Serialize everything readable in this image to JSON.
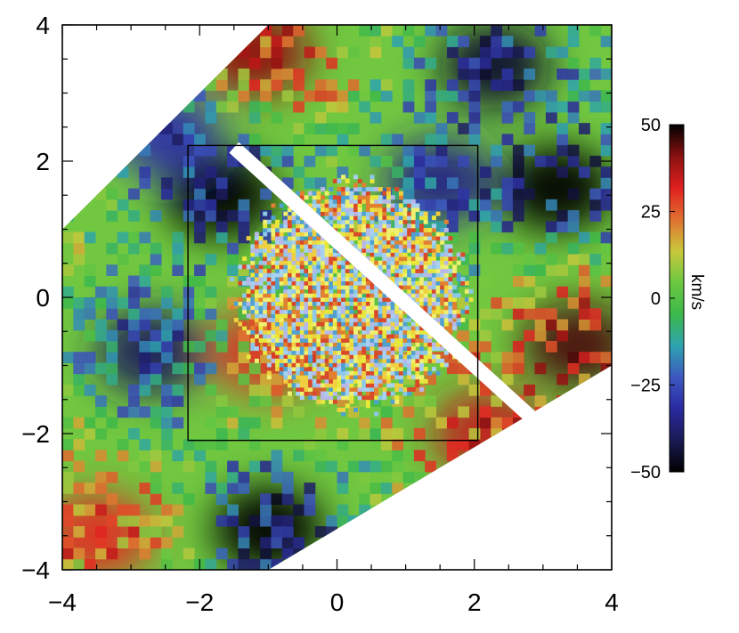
{
  "chart_data": {
    "type": "heatmap",
    "title": "",
    "xlabel": "",
    "ylabel": "",
    "xlim": [
      -4,
      4
    ],
    "ylim": [
      -4,
      4
    ],
    "x_ticks": [
      "−4",
      "−2",
      "0",
      "2",
      "4"
    ],
    "y_ticks": [
      "4",
      "2",
      "0",
      "−2",
      "−4"
    ],
    "x_tick_values": [
      -4,
      -2,
      0,
      2,
      4
    ],
    "y_tick_values": [
      4,
      2,
      0,
      -2,
      -4
    ],
    "grid": false,
    "colorbar": {
      "unit": "km/s",
      "range": [
        -50,
        50
      ],
      "ticks": [
        "50",
        "25",
        "0",
        "−25",
        "−50"
      ],
      "tick_values": [
        50,
        25,
        0,
        -25,
        -50
      ],
      "colormap": [
        "#000000",
        "#1a1a55",
        "#2a2aa0",
        "#3d58c0",
        "#2ea3b0",
        "#3cb84a",
        "#6cc840",
        "#c9c83c",
        "#e07030",
        "#e02020",
        "#8a1010",
        "#000000"
      ]
    },
    "velocity_field": {
      "region_corners": [
        [
          -1.0,
          4.0
        ],
        [
          4.0,
          4.0
        ],
        [
          4.0,
          -1.0
        ],
        [
          -1.0,
          -4.0
        ],
        [
          -4.0,
          -4.0
        ],
        [
          -4.0,
          1.0
        ]
      ],
      "slit_line": [
        [
          -1.5,
          2.2
        ],
        [
          3.2,
          -2.1
        ]
      ],
      "blobs": [
        {
          "x": -1.2,
          "y": 3.6,
          "v": 40
        },
        {
          "x": 2.3,
          "y": 3.4,
          "v": -45
        },
        {
          "x": 3.2,
          "y": 1.6,
          "v": -50
        },
        {
          "x": -1.7,
          "y": 1.5,
          "v": -50
        },
        {
          "x": 1.5,
          "y": 1.7,
          "v": -35
        },
        {
          "x": 3.5,
          "y": -0.7,
          "v": 45
        },
        {
          "x": 2.2,
          "y": -2.0,
          "v": 35
        },
        {
          "x": -2.7,
          "y": -0.8,
          "v": -40
        },
        {
          "x": -1.0,
          "y": -3.4,
          "v": -50
        },
        {
          "x": -3.5,
          "y": -3.5,
          "v": 30
        },
        {
          "x": -1.0,
          "y": -0.8,
          "v": 30
        },
        {
          "x": 0.0,
          "y": 0.2,
          "v": 0
        },
        {
          "x": -2.5,
          "y": 2.4,
          "v": -30
        }
      ]
    },
    "inset": {
      "x_range": [
        -2.05,
        2.05
      ],
      "y_range": [
        -2.15,
        2.15
      ],
      "description_shown": "high-resolution overlay"
    }
  }
}
